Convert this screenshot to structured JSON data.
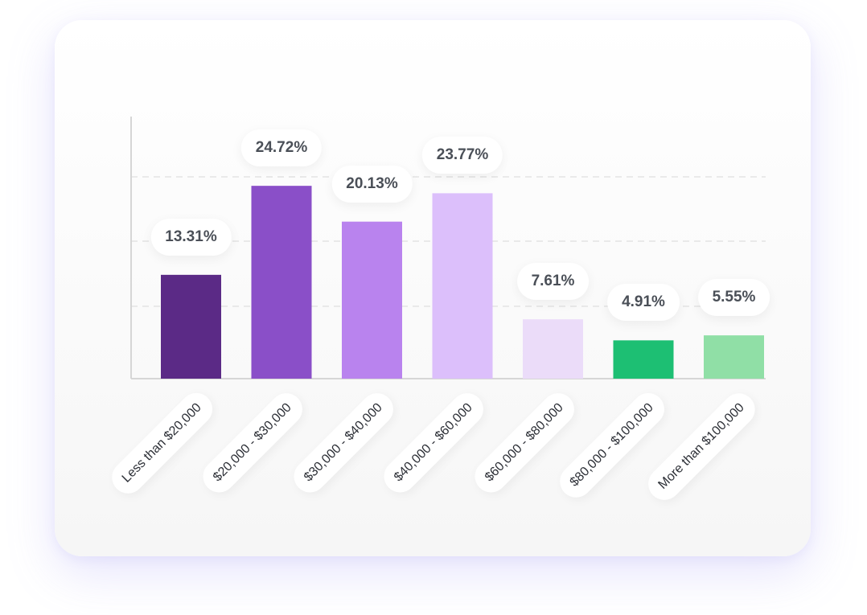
{
  "chart_data": {
    "type": "bar",
    "title": "",
    "xlabel": "",
    "ylabel": "",
    "ylim": [
      0,
      33.6
    ],
    "grid": true,
    "categories": [
      "Less than $20,000",
      "$20,000 - $30,000",
      "$30,000 - $40,000",
      "$40,000 - $60,000",
      "$60,000 - $80,000",
      "$80,000 - $100,000",
      "More than $100,000"
    ],
    "values": [
      13.31,
      24.72,
      20.13,
      23.77,
      7.61,
      4.91,
      5.55
    ],
    "labels": [
      "13.31%",
      "24.72%",
      "20.13%",
      "23.77%",
      "7.61%",
      "4.91%",
      "5.55%"
    ],
    "colors": [
      "#5b2a86",
      "#8a4fc8",
      "#b983ee",
      "#dcbffb",
      "#ebdcf9",
      "#1dbf73",
      "#90dfa6"
    ]
  }
}
